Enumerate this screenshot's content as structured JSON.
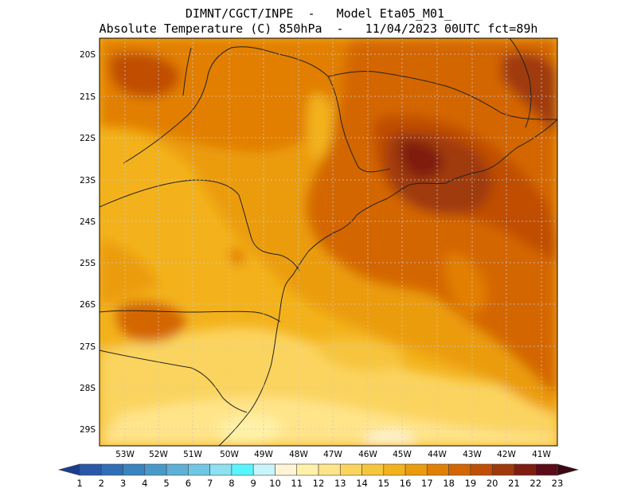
{
  "header": {
    "line1": "DIMNT/CGCT/INPE  -   Model Eta05_M01_",
    "line2": "Absolute Temperature (C) 850hPa  -   11/04/2023 00UTC fct=89h"
  },
  "map": {
    "lon_range": [
      -53.9,
      -40.3
    ],
    "lat_range": [
      -29.4,
      -19.8
    ],
    "lat_ticks": [
      "20S",
      "21S",
      "22S",
      "23S",
      "24S",
      "25S",
      "26S",
      "27S",
      "28S",
      "29S"
    ],
    "lon_ticks": [
      "53W",
      "52W",
      "51W",
      "50W",
      "49W",
      "48W",
      "47W",
      "46W",
      "45W",
      "44W",
      "43W",
      "42W",
      "41W"
    ],
    "grid": true
  },
  "colorbar": {
    "labels": [
      "1",
      "2",
      "3",
      "4",
      "5",
      "6",
      "7",
      "8",
      "9",
      "10",
      "11",
      "12",
      "13",
      "14",
      "15",
      "16",
      "17",
      "18",
      "19",
      "20",
      "21",
      "22",
      "23"
    ],
    "colors": [
      "#1a3d8f",
      "#2a58a8",
      "#2f6fb6",
      "#3a84bf",
      "#4a9ac9",
      "#5fb0d6",
      "#6fc7e3",
      "#8fe0f0",
      "#58f5ff",
      "#c8f4fb",
      "#fff5d6",
      "#fff2a8",
      "#ffe48a",
      "#fbd45e",
      "#f7c53c",
      "#f3b21c",
      "#eb9c0c",
      "#e27f05",
      "#d46603",
      "#c04e06",
      "#a03a0a",
      "#7f1d10",
      "#5a0c18",
      "#3b0814"
    ]
  }
}
